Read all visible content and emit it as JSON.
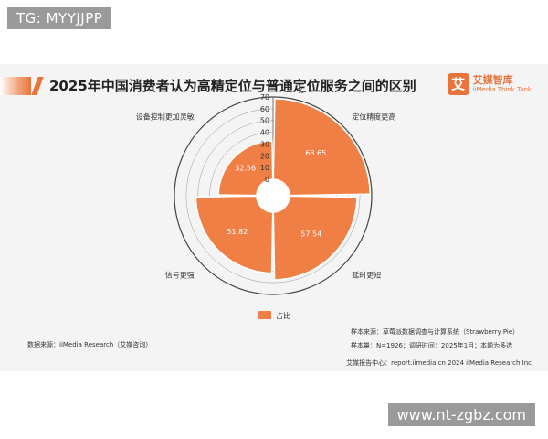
{
  "watermarks": {
    "top": "TG: MYYJJPP",
    "bottom": "www.nt-zgbz.com"
  },
  "header": {
    "title": "2025年中国消费者认为高精定位与普通定位服务之间的区别",
    "logo_mark": "艾",
    "logo_name": "艾媒智库",
    "logo_sub": "iiMedia Think Tank"
  },
  "chart_data": {
    "type": "polar-bar",
    "unit": "%",
    "radial_ticks": [
      0,
      10,
      20,
      30,
      40,
      50,
      60,
      70
    ],
    "rmax": 70,
    "categories": [
      "定位精度更高",
      "延时更短",
      "信号更强",
      "设备控制更加灵敏"
    ],
    "values": [
      68.65,
      57.54,
      51.82,
      32.56
    ],
    "value_labels": [
      "68.65",
      "57.54",
      "51.82",
      "32.56"
    ],
    "legend": "占比",
    "colors": {
      "bar": "#f07f45",
      "bar_edge": "#ffffff",
      "grid": "#555555"
    }
  },
  "footer": {
    "data_source": "数据来源：iiMedia Research（艾媒咨询）",
    "sample_source": "样本来源：草莓派数据调查与计算系统（Strawberry Pie）",
    "sample_info": "样本量：N=1926；调研时间：2025年1月；本题为多选",
    "report_center": "艾媒报告中心：report.iimedia.cn   2024 iiMedia Research Inc"
  }
}
